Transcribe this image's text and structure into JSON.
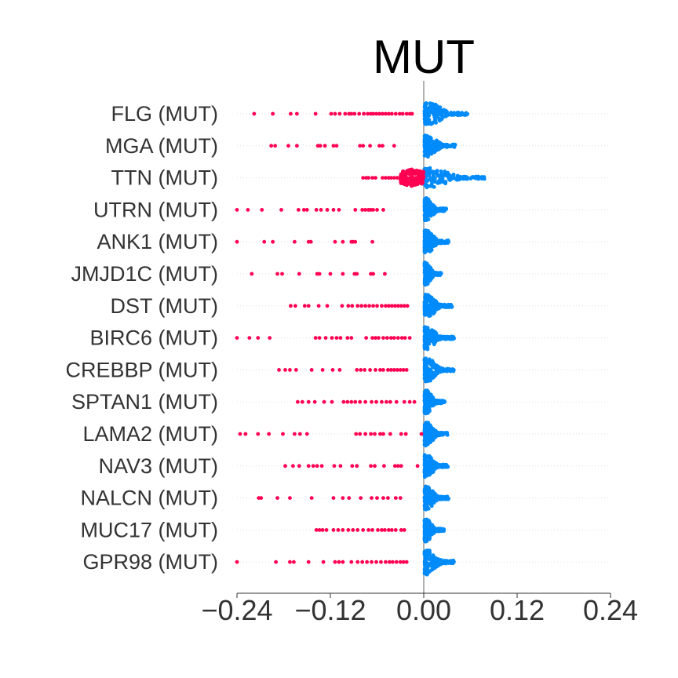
{
  "chart_data": {
    "type": "scatter",
    "subtype": "shap-beeswarm",
    "title": "MUT",
    "xlabel": "",
    "ylabel": "",
    "xlim": [
      -0.24,
      0.24
    ],
    "xticks": [
      -0.24,
      -0.12,
      0.0,
      0.12,
      0.24
    ],
    "xtick_labels": [
      "−0.24",
      "−0.12",
      "0.00",
      "0.12",
      "0.24"
    ],
    "grid": false,
    "legend": null,
    "colors": {
      "mutated": "#ff0052",
      "wildtype": "#008bfb",
      "zero_line": "#999999",
      "axis": "#333333"
    },
    "features": [
      {
        "label": "FLG (MUT)",
        "red": [
          -0.218,
          -0.194,
          -0.171,
          -0.163,
          -0.139,
          -0.119,
          -0.114,
          -0.108,
          -0.101,
          -0.096,
          -0.093,
          -0.089,
          -0.083,
          -0.077,
          -0.072,
          -0.068,
          -0.065,
          -0.061,
          -0.057,
          -0.053,
          -0.049,
          -0.045,
          -0.041,
          -0.036,
          -0.031,
          -0.027,
          -0.022,
          -0.018,
          -0.015
        ],
        "blue_extent": [
          0.0,
          0.058
        ],
        "blue_halfheight": 14
      },
      {
        "label": "MGA (MUT)",
        "red": [
          -0.196,
          -0.191,
          -0.174,
          -0.163,
          -0.136,
          -0.133,
          -0.127,
          -0.116,
          -0.112,
          -0.082,
          -0.078,
          -0.069,
          -0.057,
          -0.053,
          -0.038
        ],
        "blue_extent": [
          0.0,
          0.04
        ],
        "blue_halfheight": 14
      },
      {
        "label": "TTN (MUT)",
        "red": [
          -0.078,
          -0.074,
          -0.071,
          -0.066,
          -0.062,
          -0.053,
          -0.049,
          -0.045,
          -0.042,
          -0.038,
          -0.034,
          -0.03,
          -0.026,
          -0.022,
          -0.018,
          -0.014,
          -0.01,
          -0.006,
          -0.003
        ],
        "red_dense": [
          -0.03,
          0.0
        ],
        "blue_extent": [
          0.0,
          0.078
        ],
        "blue_halfheight": 13
      },
      {
        "label": "UTRN (MUT)",
        "red": [
          -0.24,
          -0.226,
          -0.208,
          -0.183,
          -0.161,
          -0.154,
          -0.15,
          -0.138,
          -0.132,
          -0.124,
          -0.116,
          -0.109,
          -0.088,
          -0.079,
          -0.075,
          -0.071,
          -0.068,
          -0.065,
          -0.06,
          -0.052
        ],
        "blue_extent": [
          0.0,
          0.028
        ],
        "blue_halfheight": 15
      },
      {
        "label": "ANK1 (MUT)",
        "red": [
          -0.24,
          -0.205,
          -0.194,
          -0.166,
          -0.148,
          -0.145,
          -0.114,
          -0.104,
          -0.093,
          -0.091,
          -0.088,
          -0.066
        ],
        "blue_extent": [
          0.0,
          0.031
        ],
        "blue_halfheight": 15
      },
      {
        "label": "JMJD1C (MUT)",
        "red": [
          -0.221,
          -0.188,
          -0.182,
          -0.16,
          -0.137,
          -0.134,
          -0.12,
          -0.104,
          -0.089,
          -0.086,
          -0.068,
          -0.065,
          -0.05
        ],
        "blue_extent": [
          0.0,
          0.022
        ],
        "blue_halfheight": 15
      },
      {
        "label": "DST (MUT)",
        "red": [
          -0.171,
          -0.165,
          -0.153,
          -0.148,
          -0.135,
          -0.124,
          -0.105,
          -0.097,
          -0.092,
          -0.085,
          -0.08,
          -0.075,
          -0.07,
          -0.065,
          -0.06,
          -0.054,
          -0.049,
          -0.045,
          -0.041,
          -0.037,
          -0.033,
          -0.029,
          -0.025,
          -0.021
        ],
        "blue_extent": [
          0.0,
          0.036
        ],
        "blue_halfheight": 15
      },
      {
        "label": "BIRC6 (MUT)",
        "red": [
          -0.24,
          -0.224,
          -0.213,
          -0.198,
          -0.139,
          -0.134,
          -0.126,
          -0.118,
          -0.112,
          -0.107,
          -0.098,
          -0.093,
          -0.074,
          -0.066,
          -0.062,
          -0.058,
          -0.052,
          -0.047,
          -0.042,
          -0.038,
          -0.033,
          -0.028,
          -0.024,
          -0.018
        ],
        "blue_extent": [
          0.0,
          0.038
        ],
        "blue_halfheight": 15
      },
      {
        "label": "CREBBP (MUT)",
        "red": [
          -0.186,
          -0.178,
          -0.172,
          -0.164,
          -0.144,
          -0.13,
          -0.117,
          -0.108,
          -0.086,
          -0.081,
          -0.076,
          -0.069,
          -0.062,
          -0.056,
          -0.052,
          -0.046,
          -0.042,
          -0.038,
          -0.034,
          -0.03,
          -0.026,
          -0.022
        ],
        "blue_extent": [
          0.0,
          0.038
        ],
        "blue_halfheight": 15
      },
      {
        "label": "SPTAN1 (MUT)",
        "red": [
          -0.162,
          -0.156,
          -0.148,
          -0.14,
          -0.128,
          -0.118,
          -0.103,
          -0.098,
          -0.093,
          -0.088,
          -0.082,
          -0.075,
          -0.067,
          -0.061,
          -0.054,
          -0.048,
          -0.043,
          -0.035,
          -0.025,
          -0.018,
          -0.012
        ],
        "blue_extent": [
          0.0,
          0.026
        ],
        "blue_halfheight": 15
      },
      {
        "label": "LAMA2 (MUT)",
        "red": [
          -0.236,
          -0.229,
          -0.213,
          -0.199,
          -0.181,
          -0.166,
          -0.159,
          -0.15,
          -0.087,
          -0.082,
          -0.075,
          -0.068,
          -0.063,
          -0.056,
          -0.052,
          -0.043,
          -0.029,
          -0.023,
          -0.003
        ],
        "blue_extent": [
          0.0,
          0.03
        ],
        "blue_halfheight": 15
      },
      {
        "label": "NAV3 (MUT)",
        "red": [
          -0.178,
          -0.168,
          -0.16,
          -0.148,
          -0.142,
          -0.137,
          -0.131,
          -0.115,
          -0.107,
          -0.092,
          -0.086,
          -0.068,
          -0.063,
          -0.051,
          -0.037,
          -0.033,
          -0.029,
          -0.008
        ],
        "blue_extent": [
          0.0,
          0.03
        ],
        "blue_halfheight": 15
      },
      {
        "label": "NALCN (MUT)",
        "red": [
          -0.212,
          -0.209,
          -0.188,
          -0.172,
          -0.144,
          -0.116,
          -0.104,
          -0.096,
          -0.081,
          -0.067,
          -0.06,
          -0.052,
          -0.046,
          -0.036,
          -0.03
        ],
        "blue_extent": [
          0.0,
          0.031
        ],
        "blue_halfheight": 15
      },
      {
        "label": "MUC17 (MUT)",
        "red": [
          -0.138,
          -0.134,
          -0.13,
          -0.125,
          -0.116,
          -0.11,
          -0.104,
          -0.097,
          -0.091,
          -0.085,
          -0.078,
          -0.071,
          -0.066,
          -0.059,
          -0.054,
          -0.05,
          -0.045,
          -0.041,
          -0.036,
          -0.029,
          -0.025
        ],
        "blue_extent": [
          0.0,
          0.025
        ],
        "blue_halfheight": 15
      },
      {
        "label": "GPR98 (MUT)",
        "red": [
          -0.24,
          -0.19,
          -0.172,
          -0.167,
          -0.148,
          -0.129,
          -0.114,
          -0.109,
          -0.104,
          -0.093,
          -0.085,
          -0.079,
          -0.073,
          -0.067,
          -0.061,
          -0.055,
          -0.049,
          -0.044,
          -0.04,
          -0.035,
          -0.03,
          -0.026,
          -0.022
        ],
        "blue_extent": [
          0.0,
          0.038
        ],
        "blue_halfheight": 16
      }
    ]
  }
}
